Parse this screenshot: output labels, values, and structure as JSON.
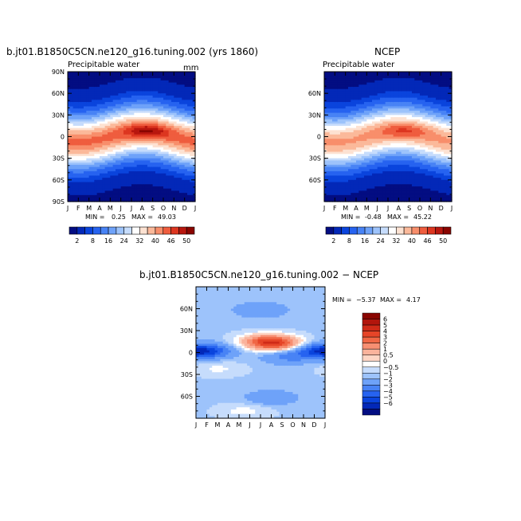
{
  "chart_data": [
    {
      "type": "heatmap",
      "title": "b.jt01.B1850C5CN.ne120_g16.tuning.002 (yrs 1860)",
      "subtitle": "Precipitable water",
      "units": "mm",
      "months": [
        "J",
        "F",
        "M",
        "A",
        "M",
        "J",
        "J",
        "A",
        "S",
        "O",
        "N",
        "D",
        "J"
      ],
      "lat_ticks": [
        "90N",
        "60N",
        "30N",
        "0",
        "30S",
        "60S",
        "90S"
      ],
      "lat_values": [
        90,
        60,
        30,
        0,
        -30,
        -60,
        -90
      ],
      "stats": {
        "min_label": "MIN =",
        "min": "0.25",
        "max_label": "MAX =",
        "max": "49.03"
      },
      "peak_value": 49.03,
      "peak_month": 7.5,
      "peak_lat": 8
    },
    {
      "type": "heatmap",
      "title": "NCEP",
      "subtitle": "Precipitable water",
      "units": "",
      "months": [
        "J",
        "F",
        "M",
        "A",
        "M",
        "J",
        "J",
        "A",
        "S",
        "O",
        "N",
        "D",
        "J"
      ],
      "lat_ticks": [
        "60N",
        "30N",
        "0",
        "30S",
        "60S"
      ],
      "lat_values": [
        60,
        30,
        0,
        -30,
        -60
      ],
      "stats": {
        "min_label": "MIN =",
        "min": "-0.48",
        "max_label": "MAX =",
        "max": "45.22"
      },
      "peak_value": 45.22,
      "peak_month": 7.5,
      "peak_lat": 8
    },
    {
      "type": "heatmap",
      "title": "b.jt01.B1850C5CN.ne120_g16.tuning.002 − NCEP",
      "months": [
        "J",
        "F",
        "M",
        "A",
        "M",
        "J",
        "J",
        "A",
        "S",
        "O",
        "N",
        "D",
        "J"
      ],
      "lat_ticks": [
        "60N",
        "30N",
        "0",
        "30S",
        "60S"
      ],
      "lat_values": [
        60,
        30,
        0,
        -30,
        -60
      ],
      "stats": {
        "min_label": "MIN =",
        "min": "−5.37",
        "max_label": "MAX =",
        "max": "4.17"
      },
      "anomalies": [
        {
          "month": 7.3,
          "lat": 12,
          "value": 4.0
        },
        {
          "month": 6.5,
          "lat": 16,
          "value": 2.5
        },
        {
          "month": 4.5,
          "lat": -80,
          "value": 0.8
        },
        {
          "month": 2.0,
          "lat": -22,
          "value": 0.7
        },
        {
          "month": 8.5,
          "lat": -6,
          "value": -1.6
        },
        {
          "month": 1.0,
          "lat": 2,
          "value": -2.8
        },
        {
          "month": 11.5,
          "lat": 2,
          "value": -2.8
        },
        {
          "month": 6.0,
          "lat": 58,
          "value": -1.4
        },
        {
          "month": 7.0,
          "lat": -62,
          "value": -1.3
        }
      ]
    }
  ],
  "colorbar_main": {
    "colors": [
      "#030d82",
      "#0328b8",
      "#0a44dd",
      "#2663f0",
      "#4883f5",
      "#6ea2f9",
      "#9dc3fb",
      "#c6dcfc",
      "#ffffff",
      "#fde2d2",
      "#fbb99a",
      "#f88e6b",
      "#ef5d3e",
      "#dd3620",
      "#b8170f",
      "#8a0500"
    ],
    "labels": [
      "2",
      "8",
      "16",
      "24",
      "32",
      "40",
      "46",
      "50"
    ]
  },
  "colorbar_diff": {
    "colors": [
      "#8a0500",
      "#b2150c",
      "#cf2a17",
      "#e64528",
      "#f06745",
      "#f78f72",
      "#fab39c",
      "#fdd5c4",
      "#ffffff",
      "#c6dcfc",
      "#9dc3fb",
      "#6ea2f9",
      "#4883f5",
      "#2663f0",
      "#0a44dd",
      "#0328b8",
      "#030d82"
    ],
    "labels": [
      "6",
      "5",
      "4",
      "3",
      "2",
      "1",
      "0.5",
      "0",
      "−0.5",
      "−1",
      "−2",
      "−3",
      "−4",
      "−5",
      "−6"
    ]
  }
}
